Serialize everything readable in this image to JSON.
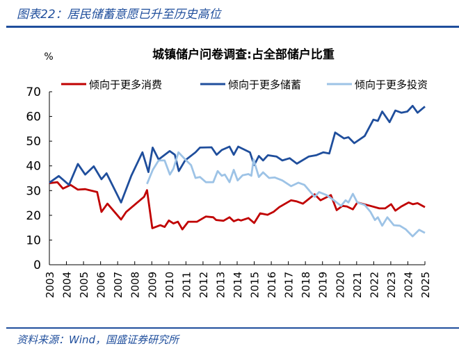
{
  "figure_title": "图表22：居民储蓄意愿已升至历史高位",
  "source": "资料来源：Wind，国盛证券研究所",
  "chart_data": {
    "type": "line",
    "title": "城镇储户问卷调查:占全部储户比重",
    "ylabel": "%",
    "xlabel": "",
    "ylim": [
      0,
      70
    ],
    "yticks": [
      0,
      10,
      20,
      30,
      40,
      50,
      60,
      70
    ],
    "xlim": [
      2003,
      2025
    ],
    "xticks": [
      "2003",
      "2004",
      "2005",
      "2006",
      "2007",
      "2008",
      "2009",
      "2010",
      "2011",
      "2012",
      "2013",
      "2014",
      "2015",
      "2016",
      "2017",
      "2018",
      "2019",
      "2020",
      "2021",
      "2022",
      "2023",
      "2024",
      "2025"
    ],
    "grid": false,
    "legend_position": "top",
    "series": [
      {
        "name": "倾向于更多消费",
        "color": "#c00000",
        "x": [
          2003,
          2003.47,
          2003.8,
          2004.24,
          2004.67,
          2005.1,
          2005.8,
          2006.05,
          2006.4,
          2007.2,
          2007.5,
          2008.55,
          2008.72,
          2009.03,
          2009.5,
          2009.75,
          2010,
          2010.27,
          2010.53,
          2010.79,
          2011.13,
          2011.65,
          2012.17,
          2012.6,
          2012.77,
          2013.2,
          2013.55,
          2013.8,
          2014.06,
          2014.23,
          2014.66,
          2015.0,
          2015.35,
          2015.78,
          2016.13,
          2016.47,
          2017.16,
          2017.5,
          2017.85,
          2018.54,
          2018.88,
          2019.49,
          2019.83,
          2020.17,
          2020.43,
          2020.78,
          2021.04,
          2021.81,
          2022.33,
          2022.67,
          2023.02,
          2023.27,
          2023.62,
          2024.05,
          2024.3,
          2024.57,
          2025
        ],
        "y": [
          33,
          33.4,
          30.8,
          32.3,
          30.4,
          30.6,
          29.4,
          21.4,
          24.7,
          18.3,
          21.4,
          27.5,
          30.2,
          14.8,
          16,
          15.3,
          17.9,
          16.7,
          17.4,
          14.3,
          17.4,
          17.4,
          19.5,
          19.2,
          18.1,
          17.8,
          19.2,
          17.6,
          18.3,
          17.9,
          18.9,
          16.9,
          20.8,
          20.2,
          21.4,
          23.3,
          26.1,
          25.6,
          24.7,
          28.5,
          26.1,
          28.2,
          22.1,
          23.8,
          23.6,
          22.4,
          25.2,
          23.8,
          22.8,
          22.8,
          24.5,
          21.9,
          23.6,
          25.2,
          24.5,
          24.9,
          23.3
        ]
      },
      {
        "name": "倾向于更多储蓄",
        "color": "#1f4e9c",
        "x": [
          2003,
          2003.55,
          2004.15,
          2004.67,
          2005.1,
          2005.6,
          2006.05,
          2006.35,
          2007.2,
          2007.8,
          2008.45,
          2008.8,
          2009.05,
          2009.4,
          2010.05,
          2010.35,
          2010.58,
          2010.95,
          2011.56,
          2011.82,
          2012.5,
          2012.8,
          2013.1,
          2013.55,
          2013.8,
          2014.06,
          2014.75,
          2015.0,
          2015.27,
          2015.52,
          2015.8,
          2016.3,
          2016.65,
          2017.08,
          2017.5,
          2018.2,
          2018.63,
          2019.05,
          2019.4,
          2019.74,
          2020.26,
          2020.52,
          2020.86,
          2021.47,
          2021.98,
          2022.24,
          2022.5,
          2022.93,
          2023.27,
          2023.62,
          2023.97,
          2024.28,
          2024.57,
          2025
        ],
        "y": [
          33.2,
          35.9,
          32.3,
          40.8,
          36.5,
          39.8,
          34.6,
          37,
          25.2,
          36,
          45.5,
          37.5,
          47.4,
          42.6,
          46,
          44.5,
          37.9,
          42.2,
          45.5,
          47.4,
          47.5,
          44.5,
          46.4,
          47.8,
          44.5,
          47.8,
          45.5,
          40.3,
          44,
          42.2,
          44.3,
          43.8,
          42.2,
          43.1,
          40.9,
          43.8,
          44.3,
          45.5,
          45,
          53.5,
          51.1,
          51.6,
          49.2,
          52.1,
          58.7,
          58.2,
          62,
          57.7,
          62.4,
          61.5,
          62,
          64.3,
          61.5,
          64
        ]
      },
      {
        "name": "倾向于更多投资",
        "color": "#9dc3e6",
        "x": [
          2008.72,
          2009.06,
          2009.4,
          2009.75,
          2010.06,
          2010.27,
          2010.56,
          2010.96,
          2011.3,
          2011.56,
          2011.82,
          2012.17,
          2012.6,
          2012.86,
          2013.1,
          2013.28,
          2013.55,
          2013.8,
          2014.03,
          2014.32,
          2014.66,
          2014.83,
          2014.96,
          2015.27,
          2015.52,
          2015.87,
          2016.21,
          2016.65,
          2017.16,
          2017.59,
          2017.94,
          2018.54,
          2018.8,
          2019.23,
          2019.57,
          2020.09,
          2020.35,
          2020.52,
          2020.78,
          2021.04,
          2021.47,
          2021.81,
          2022.07,
          2022.24,
          2022.5,
          2022.8,
          2023.18,
          2023.53,
          2023.88,
          2024.28,
          2024.66,
          2025
        ],
        "y": [
          32.7,
          38.4,
          42.2,
          42.2,
          36.5,
          38.9,
          45.5,
          42.6,
          40.3,
          35.1,
          35.5,
          33.4,
          33.4,
          37.9,
          36,
          36.5,
          33.4,
          38.4,
          34.1,
          36.2,
          36.7,
          36,
          42.6,
          35.5,
          37.4,
          35.1,
          35.3,
          34.1,
          31.8,
          33.2,
          32.3,
          27.5,
          29.4,
          28.2,
          26.6,
          23.8,
          26.1,
          25.2,
          28.7,
          25.2,
          24.2,
          21.4,
          18.1,
          19.2,
          15.8,
          19.2,
          16,
          15.8,
          14.3,
          11.5,
          14.1,
          12.9
        ]
      }
    ]
  }
}
